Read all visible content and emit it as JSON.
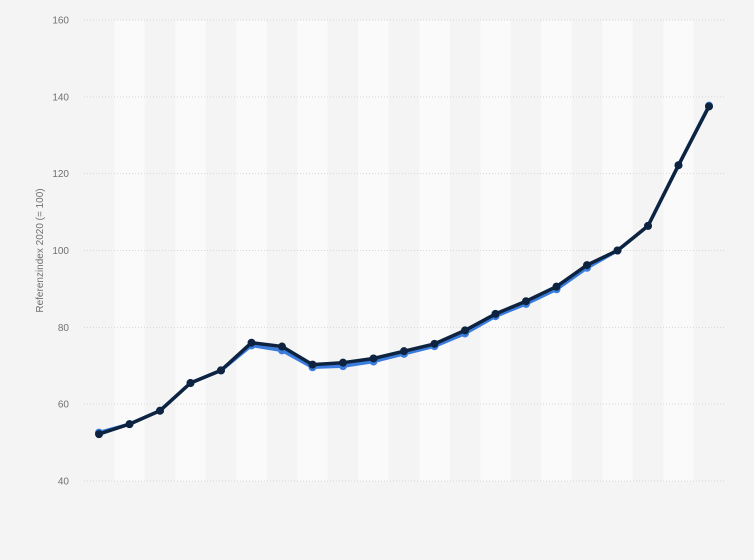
{
  "chart_data": {
    "type": "line",
    "title": "",
    "xlabel": "",
    "ylabel": "Referenzindex 2020 (= 100)",
    "ylim": [
      40,
      160
    ],
    "yticks": [
      40,
      60,
      80,
      100,
      120,
      140,
      160
    ],
    "x": [
      1,
      2,
      3,
      4,
      5,
      6,
      7,
      8,
      9,
      10,
      11,
      12,
      13,
      14,
      15,
      16,
      17,
      18,
      19,
      20,
      21
    ],
    "grid": true,
    "legend": "none",
    "series": [
      {
        "values": [
          52.6,
          54.8,
          58.3,
          65.5,
          68.8,
          75.3,
          74.0,
          69.6,
          69.9,
          71.1,
          73.1,
          75.1,
          78.4,
          82.9,
          86.1,
          89.9,
          95.5,
          100.0,
          106.4,
          122.2,
          137.7
        ],
        "color": "#3b7ddd"
      },
      {
        "values": [
          52.2,
          54.8,
          58.3,
          65.5,
          68.8,
          76.0,
          75.0,
          70.3,
          70.8,
          71.9,
          73.8,
          75.7,
          79.2,
          83.5,
          86.8,
          90.6,
          96.2,
          100.0,
          106.4,
          122.2,
          137.5
        ],
        "color": "#0d2340"
      }
    ]
  }
}
